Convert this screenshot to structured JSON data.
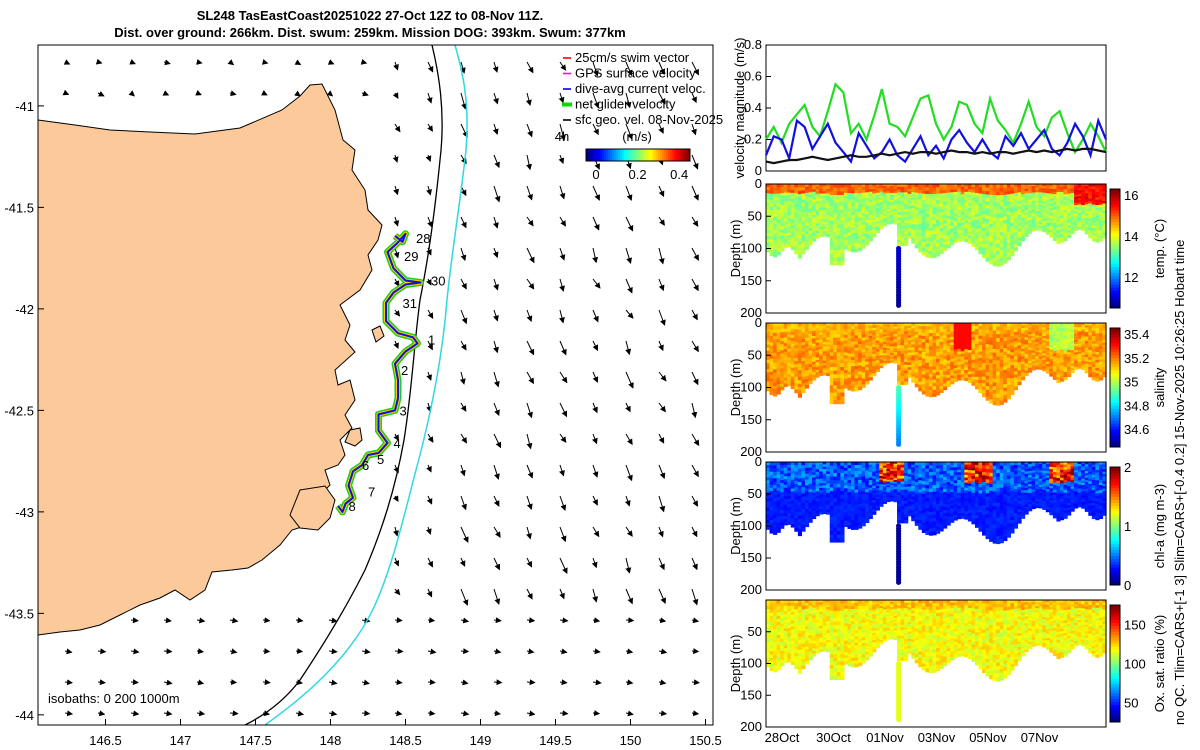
{
  "title": {
    "line1": "SL248 TasEastCoast20251022 27-Oct 12Z to 08-Nov 11Z.",
    "line2": "Dist. over ground: 266km. Dist. swum: 259km. Mission DOG: 393km. Swum: 377km"
  },
  "side_note": "no QC. Tlim=CARS+[-1 3] Slim=CARS+[-0.4 0.2] 15-Nov-2025 10:26:25 Hobart time",
  "chart_data": [
    {
      "type": "map",
      "xlim": [
        146.05,
        150.55
      ],
      "ylim": [
        -44.05,
        -40.7
      ],
      "xticks": [
        146.5,
        147,
        147.5,
        148,
        148.5,
        149,
        149.5,
        150,
        150.5
      ],
      "xtick_labels": [
        "146.5",
        "147",
        "147.5",
        "148",
        "148.5",
        "149",
        "149.5",
        "150",
        "150.5"
      ],
      "yticks": [
        -41,
        -41.5,
        -42,
        -42.5,
        -43,
        -43.5,
        -44
      ],
      "ytick_labels": [
        "-41",
        "-41.5",
        "-42",
        "-42.5",
        "-43",
        "-43.5",
        "-44"
      ],
      "legend": [
        {
          "label": "25cm/s swim vector",
          "color": "#ff0000"
        },
        {
          "label": "GPS surface velocity",
          "color": "#ff00ff"
        },
        {
          "label": "dive-avg current veloc.",
          "color": "#0000ff"
        },
        {
          "label": "net glider velocity",
          "color": "#00e000"
        },
        {
          "label": "sfc geo. vel. 08-Nov-2025",
          "color": "#000000"
        }
      ],
      "vel_colorbar": {
        "title": "(m/s)",
        "tick_labels": [
          "0",
          "0.2",
          "0.4"
        ],
        "range": [
          0,
          0.5
        ]
      },
      "interval_label": "4h",
      "isobath_label": "isobaths: 0   200  1000m",
      "track": [
        {
          "lon": 148.43,
          "lat": -41.64
        },
        {
          "lon": 148.48,
          "lat": -41.67
        },
        {
          "lon": 148.5,
          "lat": -41.63
        },
        {
          "lon": 148.44,
          "lat": -41.68
        },
        {
          "lon": 148.38,
          "lat": -41.72
        },
        {
          "lon": 148.42,
          "lat": -41.8
        },
        {
          "lon": 148.5,
          "lat": -41.86
        },
        {
          "lon": 148.6,
          "lat": -41.87
        },
        {
          "lon": 148.5,
          "lat": -41.88
        },
        {
          "lon": 148.42,
          "lat": -41.92
        },
        {
          "lon": 148.37,
          "lat": -41.97
        },
        {
          "lon": 148.37,
          "lat": -42.06
        },
        {
          "lon": 148.45,
          "lat": -42.12
        },
        {
          "lon": 148.55,
          "lat": -42.14
        },
        {
          "lon": 148.58,
          "lat": -42.17
        },
        {
          "lon": 148.5,
          "lat": -42.21
        },
        {
          "lon": 148.43,
          "lat": -42.27
        },
        {
          "lon": 148.45,
          "lat": -42.35
        },
        {
          "lon": 148.45,
          "lat": -42.44
        },
        {
          "lon": 148.43,
          "lat": -42.5
        },
        {
          "lon": 148.32,
          "lat": -42.52
        },
        {
          "lon": 148.32,
          "lat": -42.6
        },
        {
          "lon": 148.38,
          "lat": -42.66
        },
        {
          "lon": 148.32,
          "lat": -42.71
        },
        {
          "lon": 148.25,
          "lat": -42.72
        },
        {
          "lon": 148.21,
          "lat": -42.77
        },
        {
          "lon": 148.15,
          "lat": -42.8
        },
        {
          "lon": 148.12,
          "lat": -42.87
        },
        {
          "lon": 148.15,
          "lat": -42.93
        },
        {
          "lon": 148.1,
          "lat": -42.96
        },
        {
          "lon": 148.08,
          "lat": -43.0
        },
        {
          "lon": 148.05,
          "lat": -42.97
        }
      ],
      "day_labels": [
        {
          "text": "28",
          "lon": 148.57,
          "lat": -41.65
        },
        {
          "text": "29",
          "lon": 148.49,
          "lat": -41.74
        },
        {
          "text": "30",
          "lon": 148.67,
          "lat": -41.86
        },
        {
          "text": "31",
          "lon": 148.48,
          "lat": -41.97
        },
        {
          "text": "1",
          "lon": 148.65,
          "lat": -42.15
        },
        {
          "text": "2",
          "lon": 148.47,
          "lat": -42.3
        },
        {
          "text": "3",
          "lon": 148.46,
          "lat": -42.5
        },
        {
          "text": "4",
          "lon": 148.42,
          "lat": -42.66
        },
        {
          "text": "5",
          "lon": 148.31,
          "lat": -42.74
        },
        {
          "text": "6",
          "lon": 148.21,
          "lat": -42.77
        },
        {
          "text": "7",
          "lon": 148.25,
          "lat": -42.9
        },
        {
          "text": "8",
          "lon": 148.12,
          "lat": -42.97
        }
      ]
    },
    {
      "type": "line",
      "ylabel": "velocity magnitude (m/s)",
      "ylim": [
        0,
        0.8
      ],
      "yticks": [
        0,
        0.2,
        0.4,
        0.6,
        0.8
      ],
      "ytick_labels": [
        "0",
        "0.2",
        "0.4",
        "0.6",
        "0.8"
      ],
      "series": [
        {
          "name": "net glider velocity",
          "color": "#22dd22",
          "values": [
            0.2,
            0.28,
            0.18,
            0.3,
            0.36,
            0.42,
            0.28,
            0.22,
            0.38,
            0.55,
            0.5,
            0.24,
            0.3,
            0.2,
            0.35,
            0.52,
            0.3,
            0.28,
            0.22,
            0.34,
            0.46,
            0.48,
            0.3,
            0.2,
            0.28,
            0.44,
            0.42,
            0.3,
            0.24,
            0.46,
            0.32,
            0.26,
            0.18,
            0.3,
            0.44,
            0.28,
            0.22,
            0.34,
            0.38,
            0.24,
            0.12,
            0.2,
            0.3,
            0.22,
            0.12
          ]
        },
        {
          "name": "dive-avg current veloc.",
          "color": "#1010e0",
          "values": [
            0.1,
            0.22,
            0.2,
            0.08,
            0.32,
            0.28,
            0.14,
            0.22,
            0.3,
            0.18,
            0.12,
            0.06,
            0.24,
            0.16,
            0.08,
            0.12,
            0.2,
            0.1,
            0.06,
            0.14,
            0.22,
            0.1,
            0.16,
            0.08,
            0.2,
            0.26,
            0.18,
            0.12,
            0.2,
            0.12,
            0.08,
            0.22,
            0.16,
            0.24,
            0.14,
            0.2,
            0.26,
            0.14,
            0.1,
            0.18,
            0.3,
            0.22,
            0.1,
            0.32,
            0.2
          ]
        },
        {
          "name": "GPS surface velocity",
          "color": "#111111",
          "values": [
            0.06,
            0.05,
            0.06,
            0.07,
            0.07,
            0.08,
            0.09,
            0.08,
            0.07,
            0.08,
            0.09,
            0.1,
            0.09,
            0.09,
            0.1,
            0.11,
            0.1,
            0.11,
            0.12,
            0.11,
            0.12,
            0.12,
            0.11,
            0.12,
            0.13,
            0.12,
            0.12,
            0.11,
            0.12,
            0.11,
            0.12,
            0.12,
            0.11,
            0.12,
            0.13,
            0.12,
            0.13,
            0.12,
            0.13,
            0.14,
            0.13,
            0.14,
            0.14,
            0.13,
            0.12
          ]
        }
      ]
    },
    {
      "type": "heatmap",
      "ylabel": "Depth (m)",
      "ylim": [
        200,
        0
      ],
      "yticks": [
        0,
        50,
        100,
        150,
        200
      ],
      "ytick_labels": [
        "0",
        "50",
        "100",
        "150",
        "200"
      ],
      "colorbar_label": "temp. (°C)",
      "clim": [
        10.5,
        16.3
      ],
      "cbar_ticks": [
        12,
        14,
        16
      ],
      "cbar_tick_labels": [
        "12",
        "14",
        "16"
      ],
      "base_value": 13.6,
      "surface_value": 15.0,
      "surface_patches": [
        14.9,
        15.3,
        15.0
      ]
    },
    {
      "type": "heatmap",
      "ylabel": "Depth (m)",
      "ylim": [
        200,
        0
      ],
      "yticks": [
        0,
        50,
        100,
        150,
        200
      ],
      "ytick_labels": [
        "0",
        "50",
        "100",
        "150",
        "200"
      ],
      "colorbar_label": "salinity",
      "clim": [
        34.45,
        35.45
      ],
      "cbar_ticks": [
        34.6,
        34.8,
        35,
        35.2,
        35.4
      ],
      "cbar_tick_labels": [
        "34.6",
        "34.8",
        "35",
        "35.2",
        "35.4"
      ],
      "base_value": 35.17,
      "surface_value": 35.15,
      "surface_patches": [
        35.3,
        35.35,
        34.95
      ]
    },
    {
      "type": "heatmap",
      "ylabel": "Depth (m)",
      "ylim": [
        200,
        0
      ],
      "yticks": [
        0,
        50,
        100,
        150,
        200
      ],
      "ytick_labels": [
        "0",
        "50",
        "100",
        "150",
        "200"
      ],
      "colorbar_label": "chl-a (mg m-3)",
      "clim": [
        0,
        2
      ],
      "cbar_ticks": [
        0,
        1,
        2
      ],
      "cbar_tick_labels": [
        "0",
        "1",
        "2"
      ],
      "base_value": 0.25,
      "surface_value": 0.6,
      "surface_patches": [
        1.9,
        1.7,
        1.4
      ]
    },
    {
      "type": "heatmap",
      "ylabel": "Depth (m)",
      "ylim": [
        200,
        0
      ],
      "yticks": [
        50,
        100,
        150,
        200
      ],
      "ytick_labels": [
        "50",
        "100",
        "150",
        "200"
      ],
      "colorbar_label": "Ox. sat. ratio (%)",
      "clim": [
        25,
        175
      ],
      "cbar_ticks": [
        50,
        100,
        150
      ],
      "cbar_tick_labels": [
        "50",
        "100",
        "150"
      ],
      "base_value": 118,
      "surface_value": 128,
      "surface_patches": [
        135,
        132,
        130
      ],
      "xtick_labels": [
        "28Oct",
        "30Oct",
        "01Nov",
        "03Nov",
        "05Nov",
        "07Nov"
      ]
    }
  ]
}
